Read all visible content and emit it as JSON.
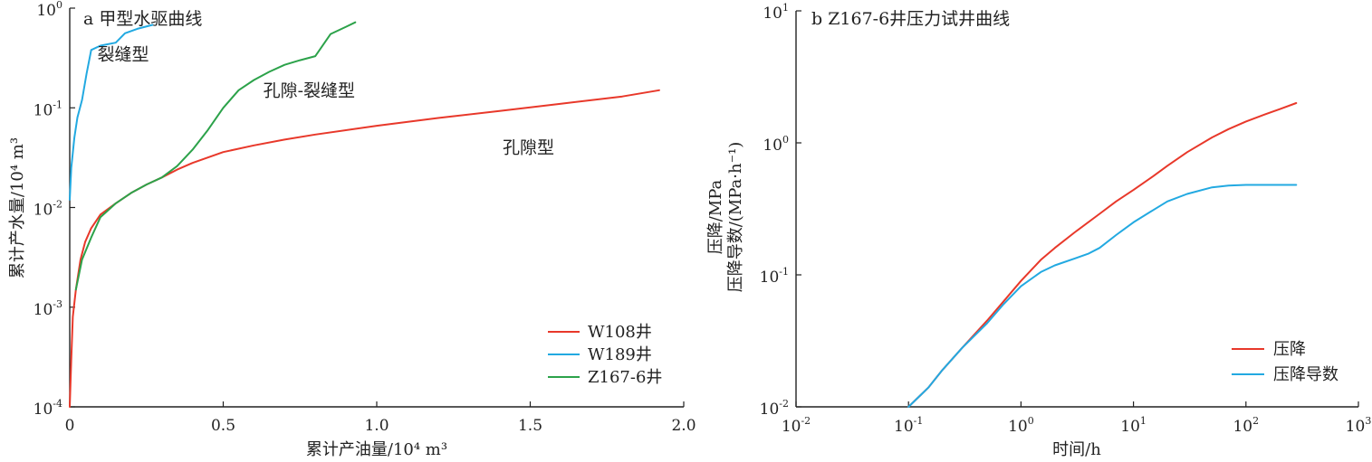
{
  "colors": {
    "red": "#e8382a",
    "blue": "#22a9e1",
    "green": "#2ca24a",
    "axis": "#222222"
  },
  "chart_data": [
    {
      "type": "line",
      "title": "a 甲型水驱曲线",
      "xlabel": "累计产油量/10⁴ m³",
      "ylabel": "累计产水量/10⁴ m³",
      "xlim": [
        0,
        2.0
      ],
      "ylim": [
        0.0001,
        1
      ],
      "y_scale": "log",
      "x_ticks": [
        "0",
        "0.5",
        "1.0",
        "1.5",
        "2.0"
      ],
      "x_tick_values": [
        0,
        0.5,
        1.0,
        1.5,
        2.0
      ],
      "y_ticks": [
        {
          "base": "10",
          "exp": "0",
          "value": 1
        },
        {
          "base": "10",
          "exp": "-1",
          "value": 0.1
        },
        {
          "base": "10",
          "exp": "-2",
          "value": 0.01
        },
        {
          "base": "10",
          "exp": "-3",
          "value": 0.001
        },
        {
          "base": "10",
          "exp": "-4",
          "value": 0.0001
        }
      ],
      "grid": false,
      "legend_position": "bottom-right",
      "annotations": [
        {
          "text": "裂缝型",
          "x": 0.09,
          "y": 0.3
        },
        {
          "text": "孔隙-裂缝型",
          "x": 0.63,
          "y": 0.13
        },
        {
          "text": "孔隙型",
          "x": 1.41,
          "y": 0.035
        }
      ],
      "series": [
        {
          "name": "W108井",
          "color": "#e8382a",
          "x": [
            0,
            0.005,
            0.01,
            0.02,
            0.035,
            0.05,
            0.07,
            0.1,
            0.15,
            0.2,
            0.25,
            0.3,
            0.35,
            0.4,
            0.5,
            0.6,
            0.7,
            0.8,
            1.0,
            1.2,
            1.4,
            1.6,
            1.8,
            1.92
          ],
          "y": [
            0.0001,
            0.0003,
            0.0008,
            0.0015,
            0.003,
            0.0045,
            0.0062,
            0.0085,
            0.011,
            0.014,
            0.017,
            0.02,
            0.024,
            0.028,
            0.036,
            0.042,
            0.048,
            0.054,
            0.066,
            0.079,
            0.093,
            0.11,
            0.13,
            0.15
          ]
        },
        {
          "name": "W189井",
          "color": "#22a9e1",
          "x": [
            0,
            0.005,
            0.015,
            0.025,
            0.04,
            0.055,
            0.07,
            0.1,
            0.15,
            0.18,
            0.22,
            0.27
          ],
          "y": [
            0.012,
            0.025,
            0.05,
            0.08,
            0.12,
            0.22,
            0.38,
            0.42,
            0.45,
            0.56,
            0.62,
            0.68
          ]
        },
        {
          "name": "Z167-6井",
          "color": "#2ca24a",
          "x": [
            0.02,
            0.04,
            0.07,
            0.1,
            0.15,
            0.2,
            0.25,
            0.3,
            0.35,
            0.4,
            0.45,
            0.5,
            0.55,
            0.6,
            0.65,
            0.7,
            0.75,
            0.8,
            0.85,
            0.9,
            0.93
          ],
          "y": [
            0.0015,
            0.003,
            0.005,
            0.008,
            0.011,
            0.014,
            0.017,
            0.02,
            0.026,
            0.038,
            0.06,
            0.1,
            0.15,
            0.19,
            0.23,
            0.27,
            0.3,
            0.33,
            0.55,
            0.65,
            0.72
          ]
        }
      ]
    },
    {
      "type": "line",
      "title": "b Z167-6井压力试井曲线",
      "xlabel": "时间/h",
      "ylabel": [
        "压降/MPa",
        "压降导数/(MPa·h⁻¹)"
      ],
      "xlim": [
        0.01,
        1000
      ],
      "ylim": [
        0.01,
        10
      ],
      "x_scale": "log",
      "y_scale": "log",
      "x_ticks": [
        {
          "base": "10",
          "exp": "-2",
          "value": 0.01
        },
        {
          "base": "10",
          "exp": "-1",
          "value": 0.1
        },
        {
          "base": "10",
          "exp": "0",
          "value": 1
        },
        {
          "base": "10",
          "exp": "1",
          "value": 10
        },
        {
          "base": "10",
          "exp": "2",
          "value": 100
        },
        {
          "base": "10",
          "exp": "3",
          "value": 1000
        }
      ],
      "y_ticks": [
        {
          "base": "10",
          "exp": "1",
          "value": 10
        },
        {
          "base": "10",
          "exp": "0",
          "value": 1
        },
        {
          "base": "10",
          "exp": "-1",
          "value": 0.1
        },
        {
          "base": "10",
          "exp": "-2",
          "value": 0.01
        }
      ],
      "grid": false,
      "legend_position": "bottom-right",
      "series": [
        {
          "name": "压降",
          "color": "#e8382a",
          "x": [
            0.1,
            0.15,
            0.2,
            0.3,
            0.5,
            0.7,
            1,
            1.5,
            2,
            3,
            5,
            7,
            10,
            15,
            20,
            30,
            50,
            70,
            100,
            150,
            200,
            280
          ],
          "y": [
            0.01,
            0.014,
            0.019,
            0.028,
            0.045,
            0.063,
            0.09,
            0.13,
            0.16,
            0.21,
            0.29,
            0.36,
            0.44,
            0.56,
            0.67,
            0.85,
            1.1,
            1.27,
            1.45,
            1.65,
            1.8,
            2.0
          ]
        },
        {
          "name": "压降导数",
          "color": "#22a9e1",
          "x": [
            0.1,
            0.15,
            0.2,
            0.3,
            0.5,
            0.7,
            1,
            1.5,
            2,
            3,
            4,
            5,
            7,
            10,
            15,
            20,
            30,
            50,
            70,
            100,
            150,
            200,
            280
          ],
          "y": [
            0.01,
            0.014,
            0.019,
            0.028,
            0.043,
            0.06,
            0.082,
            0.105,
            0.118,
            0.133,
            0.145,
            0.16,
            0.2,
            0.25,
            0.31,
            0.36,
            0.41,
            0.46,
            0.475,
            0.48,
            0.48,
            0.48,
            0.48
          ]
        }
      ]
    }
  ]
}
